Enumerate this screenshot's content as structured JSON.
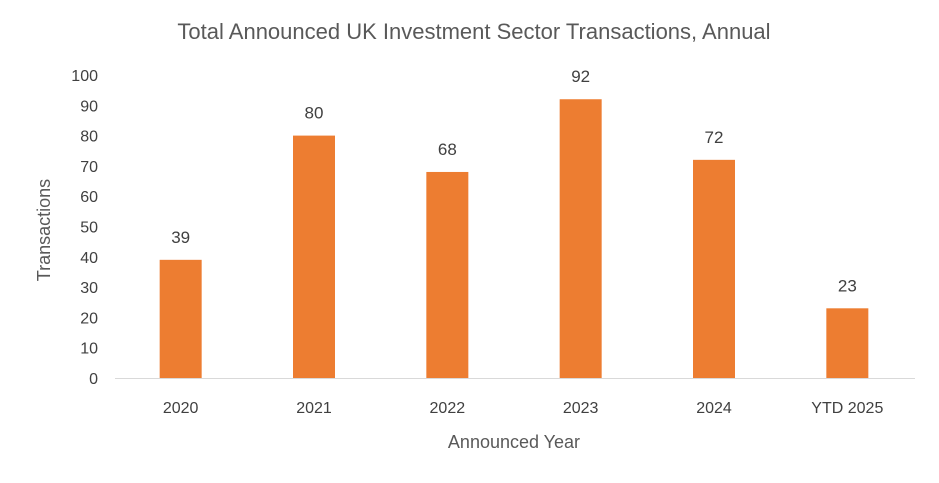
{
  "chart_data": {
    "type": "bar",
    "title": "Total Announced UK Investment Sector Transactions, Annual",
    "xlabel": "Announced Year",
    "ylabel": "Transactions",
    "categories": [
      "2020",
      "2021",
      "2022",
      "2023",
      "2024",
      "YTD 2025"
    ],
    "values": [
      39,
      80,
      68,
      92,
      72,
      23
    ],
    "data_labels": [
      "39",
      "80",
      "68",
      "92",
      "72",
      "23"
    ],
    "ylim": [
      0,
      100
    ],
    "yticks": [
      "0",
      "10",
      "20",
      "30",
      "40",
      "50",
      "60",
      "70",
      "80",
      "90",
      "100"
    ],
    "grid": false,
    "legend": "none",
    "bar_color": "#ED7D31",
    "axis_line_color": "#D9D9D9"
  }
}
